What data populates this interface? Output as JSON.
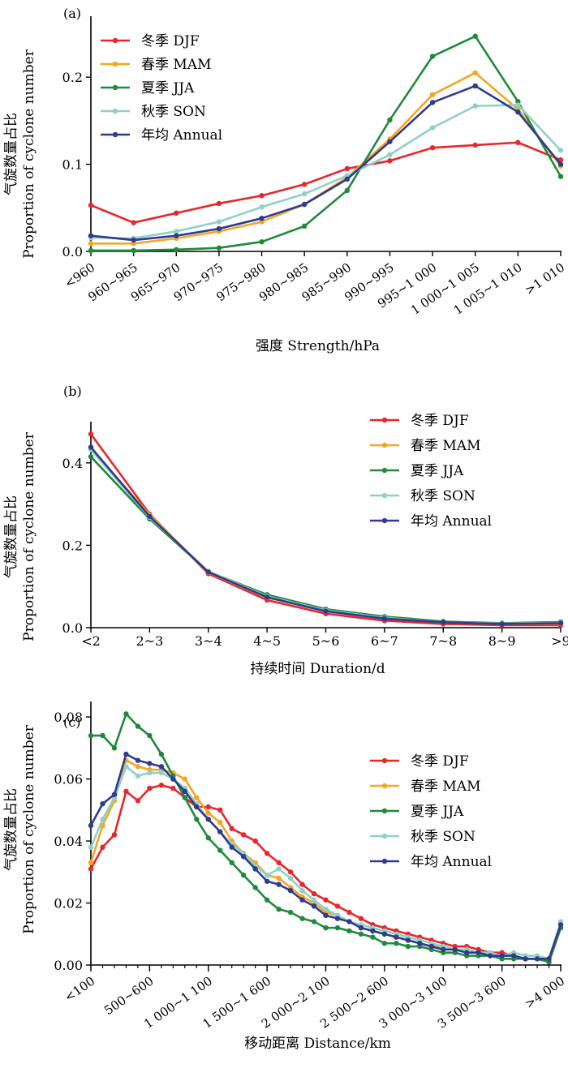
{
  "figure": {
    "ylabel_cn": "气旋数量占比",
    "ylabel_en": "Proportion of cyclone number"
  },
  "colors": {
    "DJF": "#e8262b",
    "MAM": "#f5a623",
    "JJA": "#1f8a3c",
    "SON": "#8fd1c6",
    "Annual": "#2f3b8f"
  },
  "chart_data": [
    {
      "type": "line",
      "panel_label": "(a)",
      "xlabel": "强度 Strength/hPa",
      "ylabel": "气旋数量占比 Proportion of cyclone number",
      "categories": [
        "<960",
        "960~965",
        "965~970",
        "970~975",
        "975~980",
        "980~985",
        "985~990",
        "990~995",
        "995~1 000",
        "1 000~1 005",
        "1 005~1 010",
        ">1 010"
      ],
      "ylim": [
        0,
        0.27
      ],
      "yticks": [
        0.0,
        0.1,
        0.2
      ],
      "ytick_labels": [
        "0.0",
        "0.1",
        "0.2"
      ],
      "legend": "top-left",
      "series": [
        {
          "name": "冬季 DJF",
          "key": "DJF",
          "values": [
            0.053,
            0.033,
            0.044,
            0.055,
            0.064,
            0.077,
            0.095,
            0.104,
            0.119,
            0.122,
            0.125,
            0.105
          ]
        },
        {
          "name": "春季 MAM",
          "key": "MAM",
          "values": [
            0.009,
            0.009,
            0.015,
            0.023,
            0.034,
            0.054,
            0.085,
            0.129,
            0.18,
            0.205,
            0.163,
            0.098
          ]
        },
        {
          "name": "夏季 JJA",
          "key": "JJA",
          "values": [
            0.001,
            0.001,
            0.002,
            0.004,
            0.011,
            0.029,
            0.07,
            0.151,
            0.224,
            0.247,
            0.172,
            0.086
          ]
        },
        {
          "name": "秋季 SON",
          "key": "SON",
          "values": [
            0.016,
            0.015,
            0.023,
            0.034,
            0.051,
            0.066,
            0.087,
            0.111,
            0.142,
            0.167,
            0.168,
            0.116
          ]
        },
        {
          "name": "年均 Annual",
          "key": "Annual",
          "values": [
            0.018,
            0.013,
            0.018,
            0.026,
            0.038,
            0.054,
            0.083,
            0.126,
            0.171,
            0.19,
            0.16,
            0.1
          ]
        }
      ]
    },
    {
      "type": "line",
      "panel_label": "(b)",
      "xlabel": "持续时间 Duration/d",
      "ylabel": "气旋数量占比 Proportion of cyclone number",
      "categories": [
        "<2",
        "2~3",
        "3~4",
        "4~5",
        "5~6",
        "6~7",
        "7~8",
        "8~9",
        ">9"
      ],
      "ylim": [
        0,
        0.5
      ],
      "yticks": [
        0.0,
        0.2,
        0.4
      ],
      "ytick_labels": [
        "0.0",
        "0.2",
        "0.4"
      ],
      "legend": "top-right",
      "series": [
        {
          "name": "冬季 DJF",
          "key": "DJF",
          "values": [
            0.47,
            0.276,
            0.131,
            0.067,
            0.034,
            0.017,
            0.009,
            0.006,
            0.006
          ]
        },
        {
          "name": "春季 MAM",
          "key": "MAM",
          "values": [
            0.435,
            0.274,
            0.134,
            0.073,
            0.04,
            0.023,
            0.013,
            0.009,
            0.01
          ]
        },
        {
          "name": "夏季 JJA",
          "key": "JJA",
          "values": [
            0.415,
            0.264,
            0.136,
            0.08,
            0.045,
            0.027,
            0.015,
            0.011,
            0.014
          ]
        },
        {
          "name": "秋季 SON",
          "key": "SON",
          "values": [
            0.432,
            0.268,
            0.137,
            0.076,
            0.042,
            0.024,
            0.013,
            0.01,
            0.012
          ]
        },
        {
          "name": "年均 Annual",
          "key": "Annual",
          "values": [
            0.438,
            0.27,
            0.135,
            0.074,
            0.04,
            0.022,
            0.013,
            0.009,
            0.011
          ]
        }
      ]
    },
    {
      "type": "line",
      "panel_label": "(c)",
      "xlabel": "移动距离 Distance/km",
      "ylabel": "气旋数量占比 Proportion of cyclone number",
      "x_range": [
        0,
        40
      ],
      "xtick_positions": [
        0,
        5,
        10,
        15,
        20,
        25,
        30,
        35,
        40
      ],
      "xtick_labels": [
        "<100",
        "500~600",
        "1 000~1 100",
        "1 500~1 600",
        "2 000~2 100",
        "2 500~2 600",
        "3 000~3 100",
        "3 500~3 600",
        ">4 000"
      ],
      "ylim": [
        0,
        0.085
      ],
      "yticks": [
        0.0,
        0.02,
        0.04,
        0.06,
        0.08
      ],
      "ytick_labels": [
        "0.00",
        "0.02",
        "0.04",
        "0.06",
        "0.08"
      ],
      "legend": "top-right",
      "series": [
        {
          "name": "冬季 DJF",
          "key": "DJF",
          "values": [
            0.031,
            0.038,
            0.042,
            0.056,
            0.053,
            0.057,
            0.058,
            0.057,
            0.054,
            0.051,
            0.051,
            0.05,
            0.044,
            0.042,
            0.04,
            0.036,
            0.033,
            0.03,
            0.026,
            0.023,
            0.021,
            0.019,
            0.017,
            0.015,
            0.013,
            0.012,
            0.011,
            0.01,
            0.009,
            0.008,
            0.007,
            0.006,
            0.006,
            0.005,
            0.004,
            0.004,
            0.003,
            0.002,
            0.002,
            0.001,
            0.012
          ]
        },
        {
          "name": "春季 MAM",
          "key": "MAM",
          "values": [
            0.033,
            0.045,
            0.053,
            0.066,
            0.064,
            0.063,
            0.063,
            0.062,
            0.06,
            0.054,
            0.049,
            0.046,
            0.04,
            0.036,
            0.033,
            0.029,
            0.028,
            0.025,
            0.022,
            0.02,
            0.017,
            0.016,
            0.014,
            0.012,
            0.011,
            0.01,
            0.009,
            0.008,
            0.007,
            0.006,
            0.006,
            0.005,
            0.005,
            0.004,
            0.004,
            0.003,
            0.003,
            0.002,
            0.002,
            0.002,
            0.013
          ]
        },
        {
          "name": "夏季 JJA",
          "key": "JJA",
          "values": [
            0.074,
            0.074,
            0.07,
            0.081,
            0.077,
            0.074,
            0.068,
            0.061,
            0.054,
            0.047,
            0.041,
            0.037,
            0.033,
            0.029,
            0.025,
            0.021,
            0.018,
            0.017,
            0.015,
            0.014,
            0.012,
            0.012,
            0.011,
            0.01,
            0.009,
            0.007,
            0.007,
            0.006,
            0.006,
            0.005,
            0.004,
            0.004,
            0.003,
            0.003,
            0.003,
            0.002,
            0.002,
            0.002,
            0.002,
            0.001,
            0.012
          ]
        },
        {
          "name": "秋季 SON",
          "key": "SON",
          "values": [
            0.038,
            0.047,
            0.054,
            0.064,
            0.061,
            0.062,
            0.062,
            0.06,
            0.057,
            0.052,
            0.047,
            0.043,
            0.039,
            0.036,
            0.032,
            0.029,
            0.031,
            0.028,
            0.024,
            0.021,
            0.018,
            0.016,
            0.014,
            0.013,
            0.012,
            0.011,
            0.01,
            0.009,
            0.008,
            0.007,
            0.006,
            0.005,
            0.005,
            0.004,
            0.004,
            0.003,
            0.004,
            0.003,
            0.003,
            0.002,
            0.014
          ]
        },
        {
          "name": "年均 Annual",
          "key": "Annual",
          "values": [
            0.045,
            0.052,
            0.055,
            0.068,
            0.066,
            0.065,
            0.064,
            0.06,
            0.056,
            0.051,
            0.047,
            0.043,
            0.038,
            0.035,
            0.031,
            0.027,
            0.026,
            0.024,
            0.021,
            0.019,
            0.016,
            0.015,
            0.014,
            0.012,
            0.011,
            0.01,
            0.009,
            0.008,
            0.007,
            0.006,
            0.005,
            0.005,
            0.004,
            0.004,
            0.003,
            0.003,
            0.003,
            0.002,
            0.002,
            0.002,
            0.013
          ]
        }
      ]
    }
  ]
}
